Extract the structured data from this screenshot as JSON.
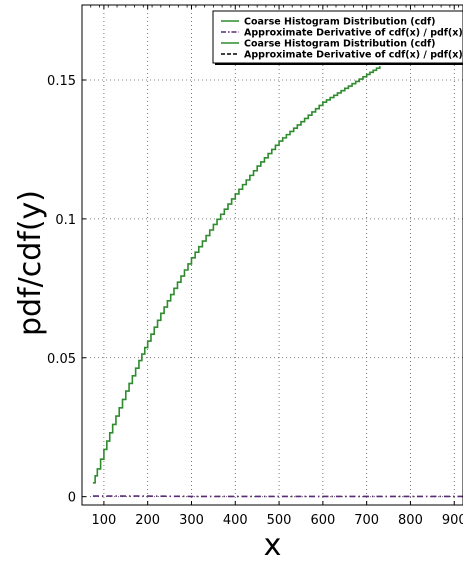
{
  "chart_data": {
    "type": "line",
    "title": "",
    "xlabel": "x",
    "ylabel": "pdf/cdf(y)",
    "xlim": [
      50,
      920
    ],
    "ylim": [
      -0.003,
      0.177
    ],
    "xticks": [
      100,
      200,
      300,
      400,
      500,
      600,
      700,
      800,
      900
    ],
    "xtick_labels": [
      "100",
      "200",
      "300",
      "400",
      "500",
      "600",
      "700",
      "800",
      "900"
    ],
    "yticks": [
      0,
      0.05,
      0.1,
      0.15
    ],
    "ytick_labels": [
      "0",
      "0.05",
      "0.1",
      "0.15"
    ],
    "grid": true,
    "legend_position": "top-right",
    "series": [
      {
        "name": "Coarse Histogram Distribution (cdf)",
        "color": "#2e8b2e",
        "style": "solid-step",
        "x": [
          75,
          85,
          100,
          120,
          150,
          180,
          200,
          230,
          260,
          300,
          350,
          400,
          450,
          500,
          550,
          600,
          650,
          700,
          730
        ],
        "y": [
          0.005,
          0.01,
          0.017,
          0.026,
          0.038,
          0.049,
          0.056,
          0.066,
          0.075,
          0.086,
          0.098,
          0.109,
          0.119,
          0.128,
          0.135,
          0.142,
          0.147,
          0.152,
          0.155
        ]
      },
      {
        "name": "Approximate Derivative of cdf(x) / pdf(x)",
        "color": "#5a2a7a",
        "style": "dash-dot",
        "x": [
          75,
          100,
          200,
          300,
          400,
          500,
          600,
          700,
          800,
          920
        ],
        "y": [
          0.0002,
          0.0002,
          0.0002,
          0.0001,
          0.0001,
          0.0001,
          0.0001,
          0.0001,
          0.0001,
          0.0001
        ]
      },
      {
        "name": "Coarse Histogram Distribution (cdf)",
        "color": "#2e8b2e",
        "style": "solid",
        "x": [],
        "y": []
      },
      {
        "name": "Approximate Derivative of cdf(x) / pdf(x)",
        "color": "#000000",
        "style": "dashed",
        "x": [],
        "y": []
      }
    ]
  }
}
